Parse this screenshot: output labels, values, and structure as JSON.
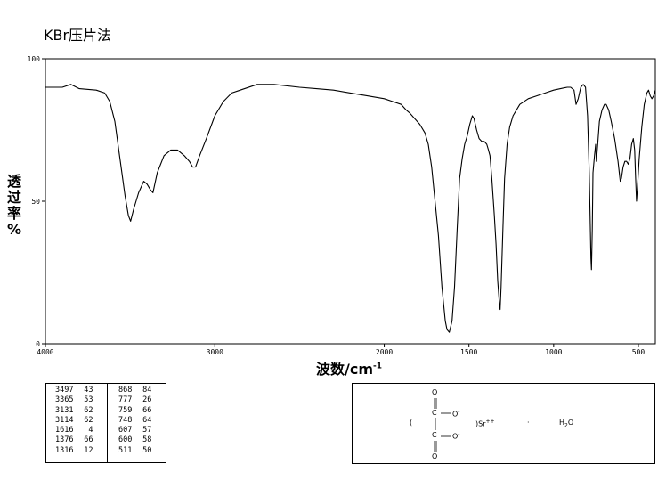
{
  "title": "KBr压片法",
  "chart_data": {
    "type": "line",
    "ylabel_chars": [
      "透",
      "过",
      "率",
      "%"
    ],
    "xlabel": "波数/cm",
    "xlabel_sup": "-1",
    "xlim": [
      4000,
      400
    ],
    "ylim": [
      0,
      100
    ],
    "x_ticks": [
      4000,
      3000,
      2000,
      1500,
      1000,
      500
    ],
    "x_tick_labels": [
      "4000",
      "3000",
      "2000",
      "1500",
      "1000",
      "500"
    ],
    "y_ticks": [
      0,
      50,
      100
    ],
    "y_tick_labels": [
      "0",
      "50",
      "100"
    ],
    "grid": false,
    "series": [
      {
        "points": [
          [
            4000,
            90
          ],
          [
            3900,
            90
          ],
          [
            3850,
            91
          ],
          [
            3800,
            89.5
          ],
          [
            3700,
            89
          ],
          [
            3650,
            88
          ],
          [
            3620,
            85
          ],
          [
            3590,
            78
          ],
          [
            3560,
            65
          ],
          [
            3530,
            52
          ],
          [
            3510,
            45
          ],
          [
            3497,
            43
          ],
          [
            3480,
            47
          ],
          [
            3450,
            53
          ],
          [
            3420,
            57
          ],
          [
            3400,
            56
          ],
          [
            3380,
            54
          ],
          [
            3365,
            53
          ],
          [
            3340,
            60
          ],
          [
            3300,
            66
          ],
          [
            3260,
            68
          ],
          [
            3220,
            68
          ],
          [
            3180,
            66
          ],
          [
            3150,
            64
          ],
          [
            3131,
            62
          ],
          [
            3114,
            62
          ],
          [
            3090,
            66
          ],
          [
            3050,
            72
          ],
          [
            3000,
            80
          ],
          [
            2950,
            85
          ],
          [
            2900,
            88
          ],
          [
            2850,
            89
          ],
          [
            2750,
            91
          ],
          [
            2650,
            91
          ],
          [
            2500,
            90
          ],
          [
            2400,
            89.5
          ],
          [
            2300,
            89
          ],
          [
            2200,
            88
          ],
          [
            2100,
            87
          ],
          [
            2000,
            86
          ],
          [
            1950,
            85
          ],
          [
            1900,
            84
          ],
          [
            1870,
            82
          ],
          [
            1850,
            81
          ],
          [
            1820,
            79
          ],
          [
            1790,
            77
          ],
          [
            1760,
            74
          ],
          [
            1740,
            70
          ],
          [
            1720,
            62
          ],
          [
            1700,
            50
          ],
          [
            1680,
            38
          ],
          [
            1660,
            20
          ],
          [
            1640,
            8
          ],
          [
            1630,
            5
          ],
          [
            1616,
            4
          ],
          [
            1600,
            8
          ],
          [
            1585,
            20
          ],
          [
            1570,
            40
          ],
          [
            1555,
            58
          ],
          [
            1540,
            65
          ],
          [
            1525,
            70
          ],
          [
            1510,
            73
          ],
          [
            1495,
            77
          ],
          [
            1480,
            80
          ],
          [
            1470,
            79
          ],
          [
            1455,
            75
          ],
          [
            1440,
            72
          ],
          [
            1425,
            71
          ],
          [
            1410,
            71
          ],
          [
            1395,
            70
          ],
          [
            1385,
            68
          ],
          [
            1376,
            66
          ],
          [
            1365,
            58
          ],
          [
            1350,
            45
          ],
          [
            1340,
            35
          ],
          [
            1330,
            22
          ],
          [
            1320,
            14
          ],
          [
            1316,
            12
          ],
          [
            1310,
            20
          ],
          [
            1300,
            40
          ],
          [
            1290,
            58
          ],
          [
            1275,
            70
          ],
          [
            1260,
            76
          ],
          [
            1240,
            80
          ],
          [
            1200,
            84
          ],
          [
            1150,
            86
          ],
          [
            1100,
            87
          ],
          [
            1050,
            88
          ],
          [
            1000,
            89
          ],
          [
            960,
            89.5
          ],
          [
            920,
            90
          ],
          [
            900,
            90
          ],
          [
            880,
            89
          ],
          [
            868,
            84
          ],
          [
            855,
            86
          ],
          [
            840,
            90
          ],
          [
            825,
            91
          ],
          [
            812,
            90
          ],
          [
            800,
            80
          ],
          [
            790,
            60
          ],
          [
            780,
            30
          ],
          [
            777,
            26
          ],
          [
            772,
            40
          ],
          [
            768,
            60
          ],
          [
            759,
            66
          ],
          [
            752,
            70
          ],
          [
            748,
            64
          ],
          [
            740,
            70
          ],
          [
            730,
            78
          ],
          [
            715,
            82
          ],
          [
            700,
            84
          ],
          [
            690,
            84
          ],
          [
            675,
            82
          ],
          [
            660,
            78
          ],
          [
            640,
            72
          ],
          [
            620,
            64
          ],
          [
            607,
            57
          ],
          [
            600,
            58
          ],
          [
            590,
            62
          ],
          [
            580,
            64
          ],
          [
            570,
            64
          ],
          [
            560,
            63
          ],
          [
            550,
            65
          ],
          [
            540,
            70
          ],
          [
            530,
            72
          ],
          [
            522,
            68
          ],
          [
            516,
            58
          ],
          [
            511,
            50
          ],
          [
            505,
            55
          ],
          [
            495,
            65
          ],
          [
            480,
            76
          ],
          [
            465,
            84
          ],
          [
            450,
            88
          ],
          [
            440,
            89
          ],
          [
            430,
            87
          ],
          [
            420,
            86
          ],
          [
            410,
            87
          ],
          [
            400,
            89
          ]
        ]
      }
    ]
  },
  "peak_table": {
    "left": [
      {
        "wn": "3497",
        "t": "43"
      },
      {
        "wn": "3365",
        "t": "53"
      },
      {
        "wn": "3131",
        "t": "62"
      },
      {
        "wn": "3114",
        "t": "62"
      },
      {
        "wn": "1616",
        "t": "4"
      },
      {
        "wn": "1376",
        "t": "66"
      },
      {
        "wn": "1316",
        "t": "12"
      }
    ],
    "right": [
      {
        "wn": "868",
        "t": "84"
      },
      {
        "wn": "777",
        "t": "26"
      },
      {
        "wn": "759",
        "t": "66"
      },
      {
        "wn": "748",
        "t": "64"
      },
      {
        "wn": "607",
        "t": "57"
      },
      {
        "wn": "600",
        "t": "58"
      },
      {
        "wn": "511",
        "t": "50"
      }
    ]
  },
  "structure": {
    "paren_open": "(",
    "oxygen": "O",
    "carbon": "C",
    "o_minus": "O",
    "minus_sup": "-",
    "cation": ")Sr",
    "cation_charge": "++",
    "dot": "·",
    "water": "H",
    "water_sub": "2",
    "water_tail": "O"
  }
}
